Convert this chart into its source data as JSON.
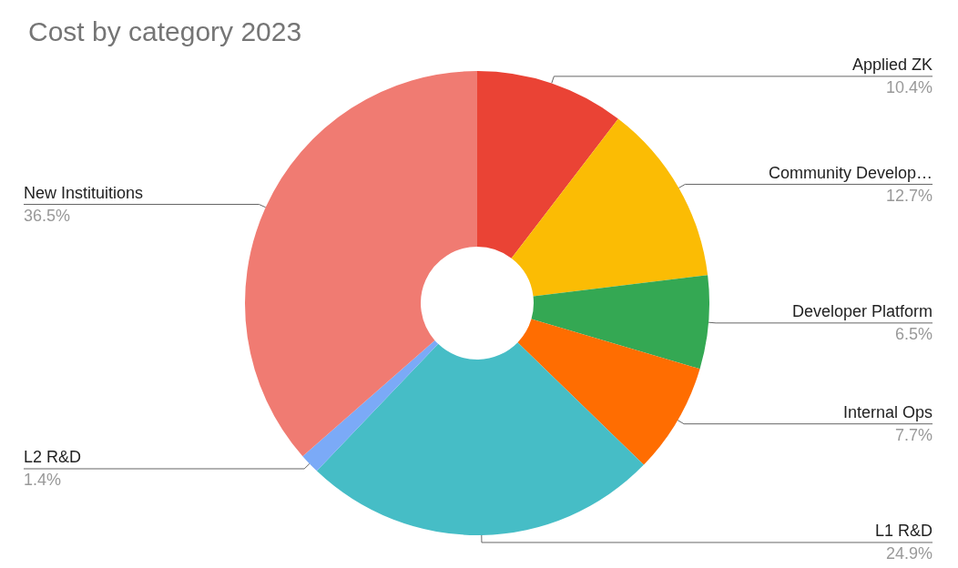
{
  "chart_data": {
    "type": "donut",
    "title": "Cost by category 2023",
    "categories": [
      "Applied ZK",
      "Community Develop…",
      "Developer Platform",
      "Internal Ops",
      "L1 R&D",
      "L2 R&D",
      "New Instituitions"
    ],
    "values": [
      10.4,
      12.7,
      6.5,
      7.7,
      24.9,
      1.4,
      36.5
    ],
    "value_labels": [
      "10.4%",
      "12.7%",
      "6.5%",
      "7.7%",
      "24.9%",
      "1.4%",
      "36.5%"
    ],
    "colors": [
      "#ea4335",
      "#fbbc04",
      "#34a853",
      "#ff6d01",
      "#46bdc6",
      "#7baaf7",
      "#f07b72"
    ],
    "legend": false
  }
}
